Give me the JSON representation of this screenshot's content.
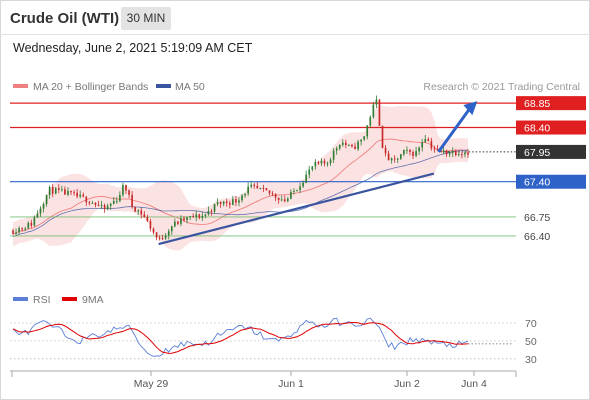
{
  "header": {
    "title": "Crude Oil (WTI)",
    "timeframe": "30 MIN",
    "datetime": "Wednesday, June 2, 2021 5:19:09 AM CET"
  },
  "colors": {
    "resistance": "#e02020",
    "support_blue": "#2f62c8",
    "support_green": "#5fb85f",
    "current_price": "#333333",
    "candle_up": "#2e7d32",
    "candle_down": "#c62828",
    "bollinger_fill": "#fbd9d9",
    "ma20": "#f08080",
    "ma50": "#3a559f",
    "rsi": "#5b7fd6",
    "rsi_ma": "#e00000"
  },
  "chart_data": [
    {
      "type": "candlestick",
      "legend": [
        {
          "name": "MA 20 + Bollinger Bands",
          "color": "#f08080"
        },
        {
          "name": "MA 50",
          "color": "#3a559f"
        }
      ],
      "credit": "Research © 2021 Trading Central",
      "y_range": [
        65.55,
        69.0
      ],
      "x_labels": [
        "May 29",
        "Jun 1",
        "Jun 2",
        "Jun 4"
      ],
      "levels": [
        {
          "value": 68.85,
          "label": "68.85",
          "kind": "resistance"
        },
        {
          "value": 68.4,
          "label": "68.40",
          "kind": "resistance"
        },
        {
          "value": 67.95,
          "label": "67.95",
          "kind": "current"
        },
        {
          "value": 67.4,
          "label": "67.40",
          "kind": "support"
        },
        {
          "value": 66.75,
          "label": "66.75",
          "kind": "target"
        },
        {
          "value": 66.4,
          "label": "66.40",
          "kind": "target"
        }
      ],
      "trendline": {
        "from": [
          0.32,
          66.25
        ],
        "to": [
          0.925,
          67.55
        ]
      },
      "arrow": {
        "from": [
          0.935,
          67.95
        ],
        "to": [
          1.025,
          68.85
        ]
      },
      "close_anchors": [
        [
          0.0,
          66.5
        ],
        [
          0.04,
          66.62
        ],
        [
          0.08,
          67.25
        ],
        [
          0.12,
          67.18
        ],
        [
          0.17,
          67.05
        ],
        [
          0.2,
          66.88
        ],
        [
          0.23,
          67.1
        ],
        [
          0.245,
          67.35
        ],
        [
          0.262,
          66.95
        ],
        [
          0.285,
          66.8
        ],
        [
          0.31,
          66.45
        ],
        [
          0.32,
          66.3
        ],
        [
          0.35,
          66.6
        ],
        [
          0.38,
          66.72
        ],
        [
          0.42,
          66.78
        ],
        [
          0.45,
          67.0
        ],
        [
          0.49,
          67.05
        ],
        [
          0.52,
          67.3
        ],
        [
          0.56,
          67.2
        ],
        [
          0.6,
          67.05
        ],
        [
          0.63,
          67.35
        ],
        [
          0.66,
          67.7
        ],
        [
          0.69,
          67.75
        ],
        [
          0.72,
          68.15
        ],
        [
          0.745,
          68.0
        ],
        [
          0.77,
          68.2
        ],
        [
          0.79,
          68.75
        ],
        [
          0.8,
          68.9
        ],
        [
          0.805,
          68.5
        ],
        [
          0.815,
          67.9
        ],
        [
          0.835,
          67.75
        ],
        [
          0.86,
          67.95
        ],
        [
          0.885,
          67.92
        ],
        [
          0.905,
          68.25
        ],
        [
          0.92,
          68.05
        ],
        [
          0.935,
          67.95
        ]
      ]
    },
    {
      "type": "line",
      "legend": [
        {
          "name": "RSI",
          "color": "#5b7fd6"
        },
        {
          "name": "9MA",
          "color": "#e00000"
        }
      ],
      "y_range": [
        22,
        80
      ],
      "y_ticks": [
        70,
        50,
        30
      ],
      "rsi_anchors": [
        [
          0.0,
          62
        ],
        [
          0.03,
          58
        ],
        [
          0.06,
          70
        ],
        [
          0.09,
          66
        ],
        [
          0.12,
          55
        ],
        [
          0.15,
          50
        ],
        [
          0.18,
          56
        ],
        [
          0.21,
          60
        ],
        [
          0.24,
          66
        ],
        [
          0.26,
          63
        ],
        [
          0.285,
          42
        ],
        [
          0.31,
          32
        ],
        [
          0.33,
          38
        ],
        [
          0.36,
          45
        ],
        [
          0.39,
          48
        ],
        [
          0.42,
          46
        ],
        [
          0.45,
          55
        ],
        [
          0.48,
          62
        ],
        [
          0.51,
          66
        ],
        [
          0.54,
          58
        ],
        [
          0.57,
          50
        ],
        [
          0.6,
          52
        ],
        [
          0.62,
          62
        ],
        [
          0.65,
          72
        ],
        [
          0.68,
          66
        ],
        [
          0.71,
          72
        ],
        [
          0.74,
          68
        ],
        [
          0.77,
          70
        ],
        [
          0.79,
          74
        ],
        [
          0.805,
          64
        ],
        [
          0.82,
          46
        ],
        [
          0.84,
          44
        ],
        [
          0.87,
          50
        ],
        [
          0.9,
          52
        ],
        [
          0.92,
          47
        ],
        [
          0.935,
          46
        ]
      ]
    }
  ]
}
